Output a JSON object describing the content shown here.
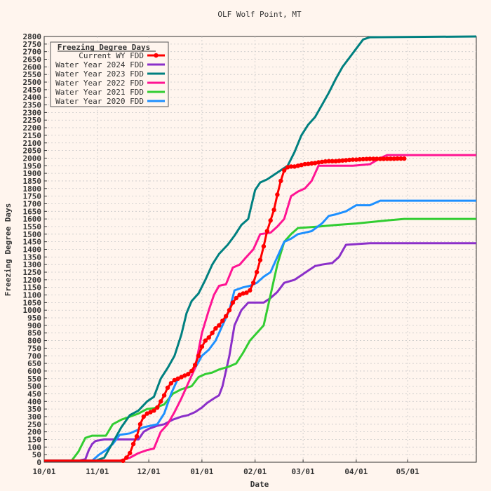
{
  "chart_data": {
    "type": "line",
    "title": "OLF Wolf Point, MT",
    "xlabel": "Date",
    "ylabel": "Freezing Degree Days",
    "ylim": [
      0,
      2800
    ],
    "y_step": 50,
    "x_day_range": [
      0,
      252
    ],
    "x_ticks": [
      {
        "label": "10/01",
        "day": 0
      },
      {
        "label": "11/01",
        "day": 31
      },
      {
        "label": "12/01",
        "day": 61
      },
      {
        "label": "01/01",
        "day": 92
      },
      {
        "label": "02/01",
        "day": 123
      },
      {
        "label": "03/01",
        "day": 151
      },
      {
        "label": "04/01",
        "day": 182
      },
      {
        "label": "05/01",
        "day": 212
      }
    ],
    "grid": true,
    "legend": {
      "title": "Freezing Degree Days",
      "position": "top-left"
    },
    "series": [
      {
        "name": "Water Year 2024 FDD",
        "color": "#8b2fc9",
        "points": [
          [
            0,
            10
          ],
          [
            20,
            10
          ],
          [
            24,
            20
          ],
          [
            26,
            80
          ],
          [
            28,
            120
          ],
          [
            30,
            140
          ],
          [
            35,
            150
          ],
          [
            55,
            150
          ],
          [
            58,
            200
          ],
          [
            61,
            220
          ],
          [
            66,
            240
          ],
          [
            70,
            250
          ],
          [
            75,
            280
          ],
          [
            80,
            300
          ],
          [
            84,
            310
          ],
          [
            88,
            330
          ],
          [
            92,
            360
          ],
          [
            95,
            390
          ],
          [
            99,
            420
          ],
          [
            102,
            440
          ],
          [
            104,
            500
          ],
          [
            106,
            600
          ],
          [
            108,
            700
          ],
          [
            111,
            900
          ],
          [
            115,
            1000
          ],
          [
            119,
            1050
          ],
          [
            123,
            1050
          ],
          [
            128,
            1050
          ],
          [
            132,
            1080
          ],
          [
            136,
            1120
          ],
          [
            140,
            1180
          ],
          [
            146,
            1200
          ],
          [
            150,
            1230
          ],
          [
            154,
            1260
          ],
          [
            158,
            1290
          ],
          [
            162,
            1300
          ],
          [
            168,
            1310
          ],
          [
            172,
            1350
          ],
          [
            176,
            1430
          ],
          [
            190,
            1440
          ],
          [
            252,
            1440
          ]
        ]
      },
      {
        "name": "Water Year 2023 FDD",
        "color": "#008080",
        "points": [
          [
            0,
            10
          ],
          [
            30,
            10
          ],
          [
            35,
            30
          ],
          [
            40,
            130
          ],
          [
            45,
            230
          ],
          [
            50,
            310
          ],
          [
            55,
            340
          ],
          [
            60,
            400
          ],
          [
            64,
            430
          ],
          [
            68,
            550
          ],
          [
            72,
            620
          ],
          [
            76,
            700
          ],
          [
            80,
            840
          ],
          [
            83,
            980
          ],
          [
            86,
            1060
          ],
          [
            90,
            1110
          ],
          [
            94,
            1200
          ],
          [
            98,
            1300
          ],
          [
            102,
            1370
          ],
          [
            107,
            1430
          ],
          [
            111,
            1490
          ],
          [
            115,
            1560
          ],
          [
            119,
            1600
          ],
          [
            123,
            1790
          ],
          [
            126,
            1840
          ],
          [
            130,
            1860
          ],
          [
            134,
            1890
          ],
          [
            138,
            1920
          ],
          [
            142,
            1950
          ],
          [
            146,
            2040
          ],
          [
            150,
            2150
          ],
          [
            154,
            2220
          ],
          [
            158,
            2270
          ],
          [
            162,
            2350
          ],
          [
            166,
            2430
          ],
          [
            170,
            2520
          ],
          [
            174,
            2600
          ],
          [
            178,
            2660
          ],
          [
            182,
            2720
          ],
          [
            186,
            2780
          ],
          [
            190,
            2795
          ],
          [
            252,
            2800
          ]
        ]
      },
      {
        "name": "Water Year 2022 FDD",
        "color": "#ff1493",
        "points": [
          [
            0,
            10
          ],
          [
            44,
            10
          ],
          [
            50,
            30
          ],
          [
            55,
            60
          ],
          [
            60,
            80
          ],
          [
            64,
            90
          ],
          [
            68,
            200
          ],
          [
            72,
            250
          ],
          [
            76,
            330
          ],
          [
            80,
            420
          ],
          [
            84,
            520
          ],
          [
            88,
            620
          ],
          [
            92,
            850
          ],
          [
            96,
            1000
          ],
          [
            99,
            1100
          ],
          [
            102,
            1160
          ],
          [
            106,
            1170
          ],
          [
            110,
            1280
          ],
          [
            114,
            1300
          ],
          [
            118,
            1350
          ],
          [
            122,
            1400
          ],
          [
            126,
            1500
          ],
          [
            132,
            1510
          ],
          [
            136,
            1550
          ],
          [
            140,
            1600
          ],
          [
            144,
            1750
          ],
          [
            148,
            1780
          ],
          [
            152,
            1800
          ],
          [
            156,
            1850
          ],
          [
            160,
            1950
          ],
          [
            168,
            1950
          ],
          [
            180,
            1950
          ],
          [
            190,
            1960
          ],
          [
            196,
            2000
          ],
          [
            200,
            2020
          ],
          [
            252,
            2020
          ]
        ]
      },
      {
        "name": "Water Year 2021 FDD",
        "color": "#32cd32",
        "points": [
          [
            0,
            10
          ],
          [
            16,
            10
          ],
          [
            20,
            70
          ],
          [
            24,
            160
          ],
          [
            28,
            175
          ],
          [
            36,
            175
          ],
          [
            40,
            250
          ],
          [
            45,
            280
          ],
          [
            50,
            300
          ],
          [
            55,
            320
          ],
          [
            60,
            350
          ],
          [
            64,
            355
          ],
          [
            70,
            380
          ],
          [
            75,
            450
          ],
          [
            80,
            480
          ],
          [
            86,
            500
          ],
          [
            90,
            560
          ],
          [
            94,
            580
          ],
          [
            98,
            590
          ],
          [
            102,
            610
          ],
          [
            108,
            630
          ],
          [
            112,
            650
          ],
          [
            116,
            720
          ],
          [
            120,
            800
          ],
          [
            124,
            850
          ],
          [
            128,
            900
          ],
          [
            132,
            1100
          ],
          [
            136,
            1300
          ],
          [
            140,
            1450
          ],
          [
            144,
            1500
          ],
          [
            148,
            1540
          ],
          [
            160,
            1550
          ],
          [
            170,
            1560
          ],
          [
            182,
            1570
          ],
          [
            200,
            1590
          ],
          [
            210,
            1600
          ],
          [
            252,
            1600
          ]
        ]
      },
      {
        "name": "Water Year 2020 FDD",
        "color": "#1e90ff",
        "points": [
          [
            0,
            10
          ],
          [
            28,
            10
          ],
          [
            32,
            50
          ],
          [
            36,
            80
          ],
          [
            40,
            120
          ],
          [
            44,
            180
          ],
          [
            50,
            190
          ],
          [
            54,
            210
          ],
          [
            58,
            230
          ],
          [
            62,
            240
          ],
          [
            66,
            250
          ],
          [
            70,
            320
          ],
          [
            74,
            450
          ],
          [
            78,
            550
          ],
          [
            84,
            580
          ],
          [
            88,
            620
          ],
          [
            92,
            700
          ],
          [
            96,
            740
          ],
          [
            100,
            800
          ],
          [
            104,
            900
          ],
          [
            108,
            1000
          ],
          [
            111,
            1130
          ],
          [
            116,
            1150
          ],
          [
            120,
            1160
          ],
          [
            124,
            1180
          ],
          [
            128,
            1220
          ],
          [
            132,
            1250
          ],
          [
            136,
            1350
          ],
          [
            140,
            1450
          ],
          [
            144,
            1470
          ],
          [
            148,
            1500
          ],
          [
            152,
            1510
          ],
          [
            156,
            1520
          ],
          [
            162,
            1570
          ],
          [
            166,
            1620
          ],
          [
            170,
            1630
          ],
          [
            176,
            1650
          ],
          [
            182,
            1690
          ],
          [
            190,
            1690
          ],
          [
            196,
            1720
          ],
          [
            252,
            1720
          ]
        ]
      },
      {
        "name": "Current WY FDD",
        "color": "#ff0000",
        "marker": true,
        "points": [
          [
            0,
            10
          ],
          [
            46,
            10
          ],
          [
            48,
            30
          ],
          [
            50,
            60
          ],
          [
            52,
            120
          ],
          [
            54,
            170
          ],
          [
            56,
            250
          ],
          [
            58,
            300
          ],
          [
            60,
            320
          ],
          [
            62,
            330
          ],
          [
            64,
            340
          ],
          [
            66,
            360
          ],
          [
            68,
            400
          ],
          [
            70,
            440
          ],
          [
            72,
            490
          ],
          [
            74,
            520
          ],
          [
            76,
            540
          ],
          [
            78,
            550
          ],
          [
            80,
            560
          ],
          [
            82,
            570
          ],
          [
            84,
            580
          ],
          [
            86,
            600
          ],
          [
            88,
            640
          ],
          [
            90,
            700
          ],
          [
            92,
            760
          ],
          [
            94,
            800
          ],
          [
            96,
            820
          ],
          [
            98,
            850
          ],
          [
            100,
            880
          ],
          [
            102,
            900
          ],
          [
            104,
            930
          ],
          [
            106,
            960
          ],
          [
            108,
            1000
          ],
          [
            110,
            1050
          ],
          [
            112,
            1080
          ],
          [
            114,
            1100
          ],
          [
            116,
            1110
          ],
          [
            118,
            1115
          ],
          [
            120,
            1130
          ],
          [
            122,
            1180
          ],
          [
            124,
            1250
          ],
          [
            126,
            1330
          ],
          [
            128,
            1420
          ],
          [
            130,
            1520
          ],
          [
            132,
            1590
          ],
          [
            134,
            1660
          ],
          [
            136,
            1760
          ],
          [
            138,
            1850
          ],
          [
            140,
            1920
          ],
          [
            142,
            1940
          ],
          [
            144,
            1945
          ],
          [
            146,
            1945
          ],
          [
            148,
            1950
          ],
          [
            150,
            1955
          ],
          [
            152,
            1960
          ],
          [
            154,
            1962
          ],
          [
            156,
            1965
          ],
          [
            158,
            1968
          ],
          [
            160,
            1972
          ],
          [
            162,
            1975
          ],
          [
            164,
            1978
          ],
          [
            166,
            1980
          ],
          [
            168,
            1980
          ],
          [
            170,
            1980
          ],
          [
            172,
            1982
          ],
          [
            174,
            1984
          ],
          [
            176,
            1986
          ],
          [
            178,
            1988
          ],
          [
            180,
            1990
          ],
          [
            182,
            1990
          ],
          [
            184,
            1992
          ],
          [
            186,
            1993
          ],
          [
            188,
            1994
          ],
          [
            190,
            1995
          ],
          [
            192,
            1995
          ],
          [
            194,
            1995
          ],
          [
            196,
            1995
          ],
          [
            198,
            1995
          ],
          [
            200,
            1996
          ],
          [
            202,
            1996
          ],
          [
            204,
            1996
          ],
          [
            206,
            1997
          ],
          [
            208,
            1997
          ],
          [
            210,
            1997
          ]
        ]
      }
    ]
  }
}
